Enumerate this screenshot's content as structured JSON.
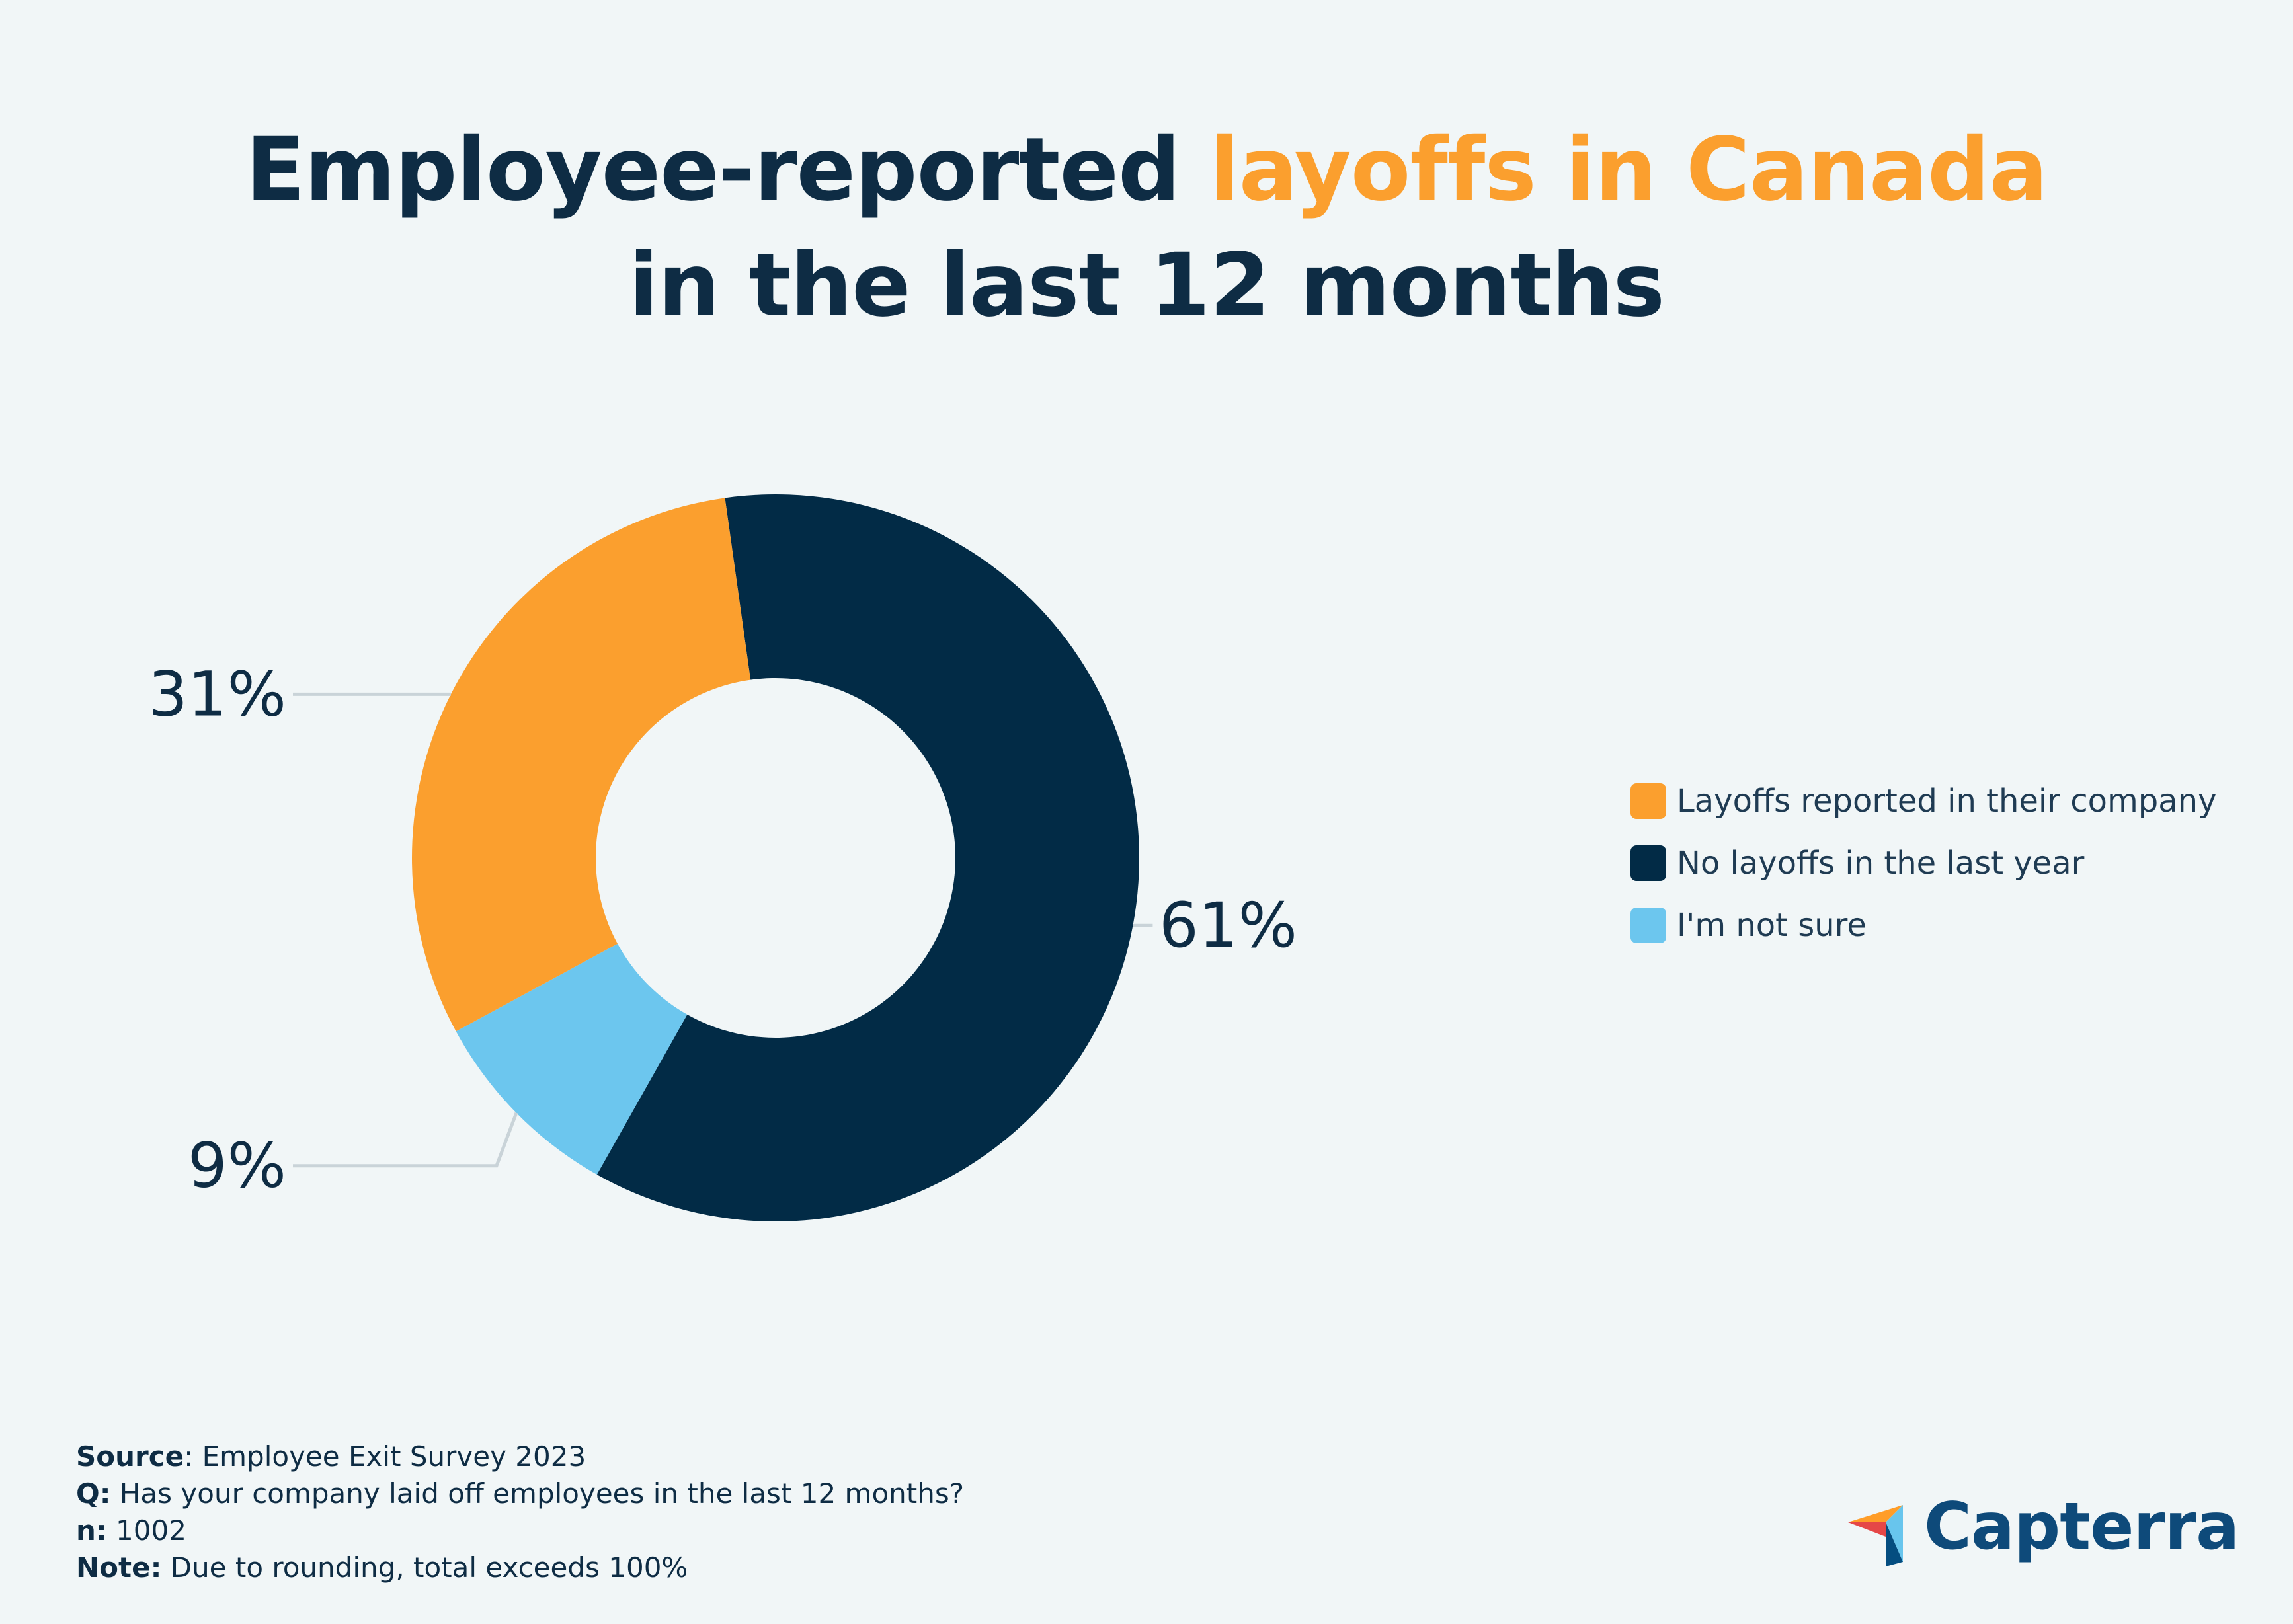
{
  "title": {
    "part1": "Employee-reported ",
    "part2": "layoffs in Canada",
    "line2": "in the last 12 months"
  },
  "colors": {
    "navy": "#022b46",
    "orange": "#fb9f2e",
    "lightblue": "#6cc6ee",
    "leader": "#c9d3d8",
    "background": "#f1f6f7"
  },
  "chart_data": {
    "type": "pie",
    "subtype": "donut",
    "title": "Employee-reported layoffs in Canada in the last 12 months",
    "categories": [
      "Layoffs reported in their company",
      "No layoffs in the last year",
      "I'm not sure"
    ],
    "values": [
      31,
      61,
      9
    ],
    "labels": [
      "31%",
      "61%",
      "9%"
    ],
    "legend_position": "right"
  },
  "legend": [
    {
      "label": "Layoffs reported in their company",
      "color": "#fb9f2e"
    },
    {
      "label": "No layoffs in the last year",
      "color": "#022b46"
    },
    {
      "label": "I'm not sure",
      "color": "#6cc6ee"
    }
  ],
  "footer": {
    "source_label": "Source",
    "source_text": ": Employee Exit Survey 2023",
    "q_label": "Q:",
    "q_text": " Has your company laid off employees in the last 12 months?",
    "n_label": "n:",
    "n_text": " 1002",
    "note_label": "Note:",
    "note_text": " Due to rounding, total exceeds 100%"
  },
  "logo": {
    "text": "Capterra"
  }
}
